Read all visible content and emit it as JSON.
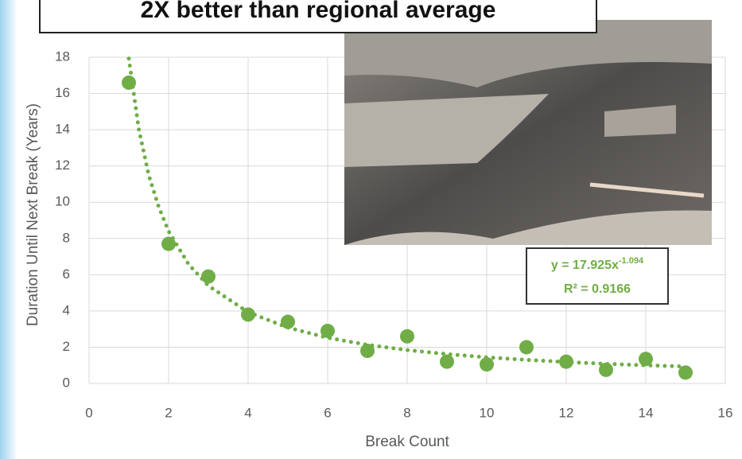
{
  "chart_data": {
    "type": "scatter",
    "title": "2X better than regional average",
    "x_label": "Break Count",
    "y_label": "Duration Until Next Break (Years)",
    "x": [
      1,
      2,
      3,
      4,
      5,
      6,
      7,
      8,
      9,
      10,
      11,
      12,
      13,
      14,
      15
    ],
    "values": [
      16.6,
      7.7,
      5.9,
      3.8,
      3.4,
      2.9,
      1.8,
      2.6,
      1.2,
      1.05,
      2.0,
      1.2,
      0.75,
      1.35,
      0.6
    ],
    "color": "#70ad47",
    "trendline": {
      "color": "#70ad47",
      "x": [
        1,
        1.25,
        1.5,
        1.75,
        2,
        2.5,
        3,
        4,
        5,
        6,
        7,
        8,
        9,
        10,
        11,
        12,
        13,
        14,
        15
      ],
      "values": [
        17.93,
        14.04,
        11.5,
        9.75,
        8.4,
        6.58,
        5.39,
        3.93,
        3.08,
        2.52,
        2.13,
        1.84,
        1.62,
        1.44,
        1.3,
        1.18,
        1.08,
        1.0,
        0.93
      ]
    },
    "equation": {
      "base": "y = 17.925x",
      "exponent": "-1.094",
      "r_squared": "R² = 0.9166"
    },
    "xlim": [
      0,
      16
    ],
    "xticks": [
      0,
      2,
      4,
      6,
      8,
      10,
      12,
      14,
      16
    ],
    "ylim": [
      0,
      18
    ],
    "yticks": [
      0,
      2,
      4,
      6,
      8,
      10,
      12,
      14,
      16,
      18
    ],
    "grid": true
  }
}
